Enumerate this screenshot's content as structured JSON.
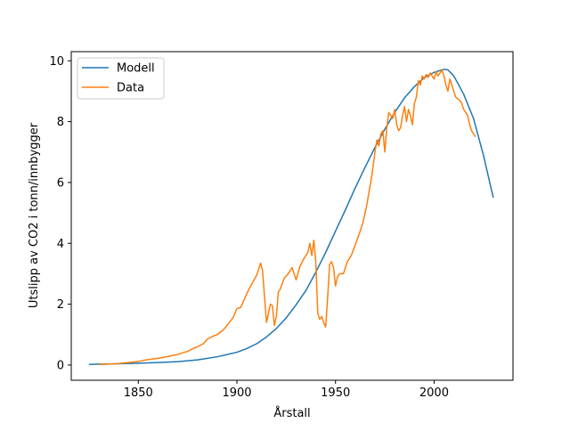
{
  "chart_data": {
    "type": "line",
    "xlabel": "Årstall",
    "ylabel": "Utslipp av CO2 i tonn/innbygger",
    "xlim": [
      1816,
      2040
    ],
    "ylim": [
      -0.5,
      10.3
    ],
    "xticks": [
      1850,
      1900,
      1950,
      2000
    ],
    "yticks": [
      0,
      2,
      4,
      6,
      8,
      10
    ],
    "legend_position": "upper-left",
    "grid": false,
    "series": [
      {
        "name": "Modell",
        "color": "#1f77b4",
        "x": [
          1825,
          1830,
          1840,
          1850,
          1860,
          1870,
          1880,
          1890,
          1900,
          1905,
          1910,
          1915,
          1920,
          1925,
          1930,
          1935,
          1940,
          1945,
          1950,
          1955,
          1960,
          1965,
          1970,
          1975,
          1980,
          1985,
          1990,
          1995,
          2000,
          2005,
          2007,
          2010,
          2015,
          2020,
          2025,
          2030
        ],
        "y": [
          0.02,
          0.03,
          0.04,
          0.06,
          0.08,
          0.11,
          0.17,
          0.27,
          0.42,
          0.54,
          0.7,
          0.92,
          1.2,
          1.55,
          1.98,
          2.45,
          3.05,
          3.7,
          4.4,
          5.1,
          5.82,
          6.5,
          7.15,
          7.75,
          8.3,
          8.78,
          9.15,
          9.45,
          9.62,
          9.72,
          9.7,
          9.5,
          8.9,
          8.1,
          6.9,
          5.5
        ]
      },
      {
        "name": "Data",
        "color": "#ff7f0e",
        "x": [
          1830,
          1835,
          1840,
          1845,
          1850,
          1855,
          1860,
          1865,
          1870,
          1875,
          1878,
          1880,
          1883,
          1885,
          1888,
          1890,
          1893,
          1895,
          1898,
          1900,
          1902,
          1905,
          1907,
          1910,
          1912,
          1913,
          1915,
          1917,
          1918,
          1919,
          1920,
          1921,
          1922,
          1924,
          1926,
          1928,
          1930,
          1932,
          1934,
          1936,
          1937,
          1938,
          1939,
          1940,
          1941,
          1942,
          1943,
          1944,
          1945,
          1946,
          1947,
          1948,
          1949,
          1950,
          1951,
          1952,
          1954,
          1956,
          1958,
          1960,
          1962,
          1964,
          1966,
          1967,
          1968,
          1969,
          1970,
          1971,
          1972,
          1973,
          1974,
          1975,
          1976,
          1977,
          1978,
          1979,
          1980,
          1981,
          1982,
          1983,
          1984,
          1985,
          1986,
          1987,
          1988,
          1989,
          1990,
          1991,
          1992,
          1993,
          1994,
          1995,
          1996,
          1997,
          1998,
          1999,
          2000,
          2001,
          2002,
          2003,
          2004,
          2005,
          2006,
          2007,
          2008,
          2009,
          2010,
          2011,
          2012,
          2013,
          2014,
          2015,
          2016,
          2017,
          2018,
          2019,
          2020,
          2021
        ],
        "y": [
          0.02,
          0.03,
          0.05,
          0.08,
          0.12,
          0.18,
          0.22,
          0.28,
          0.35,
          0.45,
          0.55,
          0.6,
          0.7,
          0.85,
          0.95,
          1.0,
          1.15,
          1.3,
          1.55,
          1.85,
          1.9,
          2.35,
          2.6,
          2.95,
          3.35,
          3.1,
          1.4,
          2.0,
          1.95,
          1.3,
          1.6,
          2.4,
          2.5,
          2.85,
          3.0,
          3.2,
          2.8,
          3.25,
          3.5,
          3.7,
          4.0,
          3.6,
          4.1,
          3.4,
          1.7,
          1.5,
          1.6,
          1.4,
          1.25,
          2.2,
          3.3,
          3.4,
          3.2,
          2.6,
          2.9,
          3.0,
          3.0,
          3.4,
          3.6,
          3.95,
          4.3,
          4.7,
          5.3,
          5.7,
          6.05,
          6.5,
          7.0,
          7.4,
          7.2,
          7.6,
          7.7,
          7.0,
          7.8,
          8.3,
          8.2,
          8.1,
          8.4,
          7.9,
          7.7,
          7.8,
          8.2,
          8.5,
          8.0,
          8.4,
          8.2,
          7.9,
          8.6,
          8.8,
          9.35,
          9.2,
          9.5,
          9.4,
          9.55,
          9.45,
          9.6,
          9.5,
          9.4,
          9.65,
          9.5,
          9.6,
          9.7,
          9.5,
          9.2,
          9.0,
          9.4,
          9.2,
          9.0,
          8.8,
          8.75,
          8.7,
          8.6,
          8.4,
          8.3,
          8.2,
          7.9,
          7.7,
          7.6,
          7.5
        ]
      }
    ]
  }
}
